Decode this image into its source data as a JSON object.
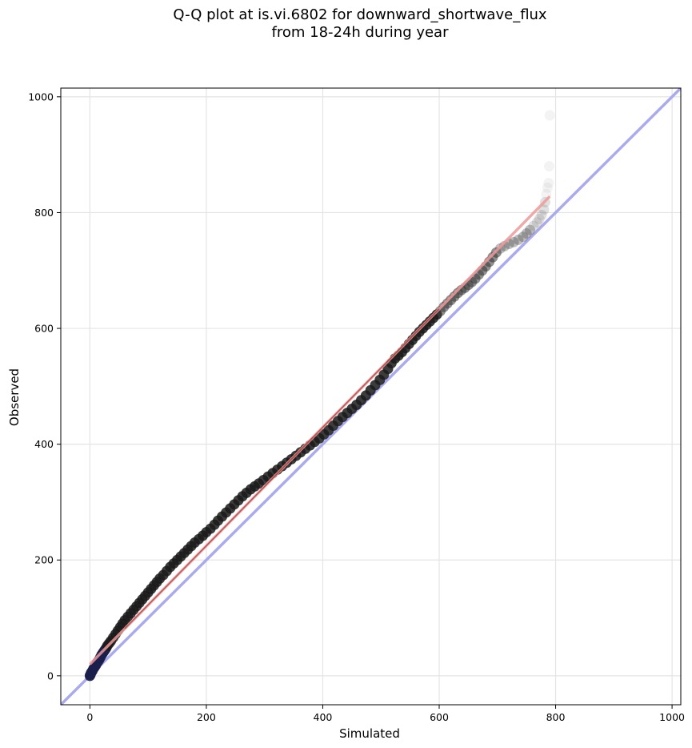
{
  "chart_data": {
    "type": "scatter",
    "title": [
      "Q-Q plot at is.vi.6802 for downward_shortwave_flux",
      "from 18-24h during year"
    ],
    "xlabel": "Simulated",
    "ylabel": "Observed",
    "xlim": [
      -50,
      1015
    ],
    "ylim": [
      -50,
      1015
    ],
    "xticks": [
      0,
      200,
      400,
      600,
      800,
      1000
    ],
    "yticks": [
      0,
      200,
      400,
      600,
      800,
      1000
    ],
    "grid": true,
    "reference_line": {
      "from": [
        -50,
        -50
      ],
      "to": [
        1015,
        1015
      ],
      "color": "#aaaaee"
    },
    "fit_line": {
      "from": [
        0,
        20
      ],
      "to": [
        790,
        828
      ],
      "color": "#ee9999"
    },
    "points": [
      [
        0,
        0
      ],
      [
        1,
        2
      ],
      [
        2,
        5
      ],
      [
        4,
        8
      ],
      [
        6,
        12
      ],
      [
        8,
        15
      ],
      [
        10,
        18
      ],
      [
        12,
        22
      ],
      [
        14,
        25
      ],
      [
        16,
        28
      ],
      [
        18,
        32
      ],
      [
        20,
        36
      ],
      [
        22,
        39
      ],
      [
        24,
        42
      ],
      [
        26,
        45
      ],
      [
        28,
        48
      ],
      [
        30,
        52
      ],
      [
        33,
        56
      ],
      [
        36,
        60
      ],
      [
        40,
        66
      ],
      [
        44,
        72
      ],
      [
        48,
        78
      ],
      [
        52,
        84
      ],
      [
        56,
        90
      ],
      [
        60,
        96
      ],
      [
        65,
        102
      ],
      [
        70,
        108
      ],
      [
        75,
        114
      ],
      [
        80,
        120
      ],
      [
        85,
        126
      ],
      [
        90,
        132
      ],
      [
        95,
        138
      ],
      [
        100,
        144
      ],
      [
        105,
        150
      ],
      [
        110,
        156
      ],
      [
        115,
        162
      ],
      [
        120,
        168
      ],
      [
        126,
        174
      ],
      [
        132,
        181
      ],
      [
        138,
        188
      ],
      [
        144,
        194
      ],
      [
        150,
        200
      ],
      [
        156,
        206
      ],
      [
        162,
        212
      ],
      [
        168,
        218
      ],
      [
        174,
        224
      ],
      [
        180,
        230
      ],
      [
        187,
        236
      ],
      [
        194,
        242
      ],
      [
        200,
        248
      ],
      [
        207,
        254
      ],
      [
        214,
        261
      ],
      [
        220,
        268
      ],
      [
        227,
        275
      ],
      [
        234,
        282
      ],
      [
        241,
        289
      ],
      [
        248,
        296
      ],
      [
        255,
        303
      ],
      [
        262,
        310
      ],
      [
        269,
        316
      ],
      [
        276,
        322
      ],
      [
        283,
        327
      ],
      [
        290,
        332
      ],
      [
        298,
        338
      ],
      [
        306,
        344
      ],
      [
        314,
        350
      ],
      [
        322,
        356
      ],
      [
        330,
        362
      ],
      [
        338,
        368
      ],
      [
        346,
        374
      ],
      [
        354,
        380
      ],
      [
        362,
        386
      ],
      [
        370,
        392
      ],
      [
        378,
        398
      ],
      [
        386,
        404
      ],
      [
        394,
        410
      ],
      [
        402,
        417
      ],
      [
        410,
        424
      ],
      [
        418,
        432
      ],
      [
        426,
        440
      ],
      [
        434,
        447
      ],
      [
        442,
        454
      ],
      [
        450,
        461
      ],
      [
        458,
        468
      ],
      [
        466,
        476
      ],
      [
        474,
        484
      ],
      [
        482,
        493
      ],
      [
        490,
        502
      ],
      [
        498,
        511
      ],
      [
        505,
        520
      ],
      [
        512,
        530
      ],
      [
        518,
        540
      ],
      [
        524,
        548
      ],
      [
        530,
        553
      ],
      [
        536,
        559
      ],
      [
        542,
        566
      ],
      [
        548,
        573
      ],
      [
        554,
        580
      ],
      [
        560,
        587
      ],
      [
        566,
        594
      ],
      [
        572,
        600
      ],
      [
        578,
        606
      ],
      [
        584,
        612
      ],
      [
        590,
        618
      ],
      [
        596,
        624
      ],
      [
        602,
        630
      ],
      [
        608,
        637
      ],
      [
        614,
        643
      ],
      [
        620,
        649
      ],
      [
        626,
        655
      ],
      [
        632,
        661
      ],
      [
        638,
        666
      ],
      [
        644,
        670
      ],
      [
        650,
        675
      ],
      [
        656,
        680
      ],
      [
        662,
        686
      ],
      [
        668,
        693
      ],
      [
        674,
        700
      ],
      [
        680,
        707
      ],
      [
        686,
        715
      ],
      [
        692,
        723
      ],
      [
        698,
        731
      ],
      [
        705,
        738
      ],
      [
        712,
        742
      ],
      [
        720,
        746
      ],
      [
        728,
        749
      ],
      [
        736,
        753
      ],
      [
        744,
        758
      ],
      [
        750,
        764
      ],
      [
        756,
        770
      ],
      [
        762,
        777
      ],
      [
        768,
        783
      ],
      [
        772,
        789
      ],
      [
        776,
        796
      ],
      [
        780,
        805
      ],
      [
        782,
        818
      ],
      [
        784,
        832
      ],
      [
        786,
        843
      ],
      [
        788,
        851
      ],
      [
        789,
        880
      ],
      [
        790,
        968
      ]
    ]
  }
}
